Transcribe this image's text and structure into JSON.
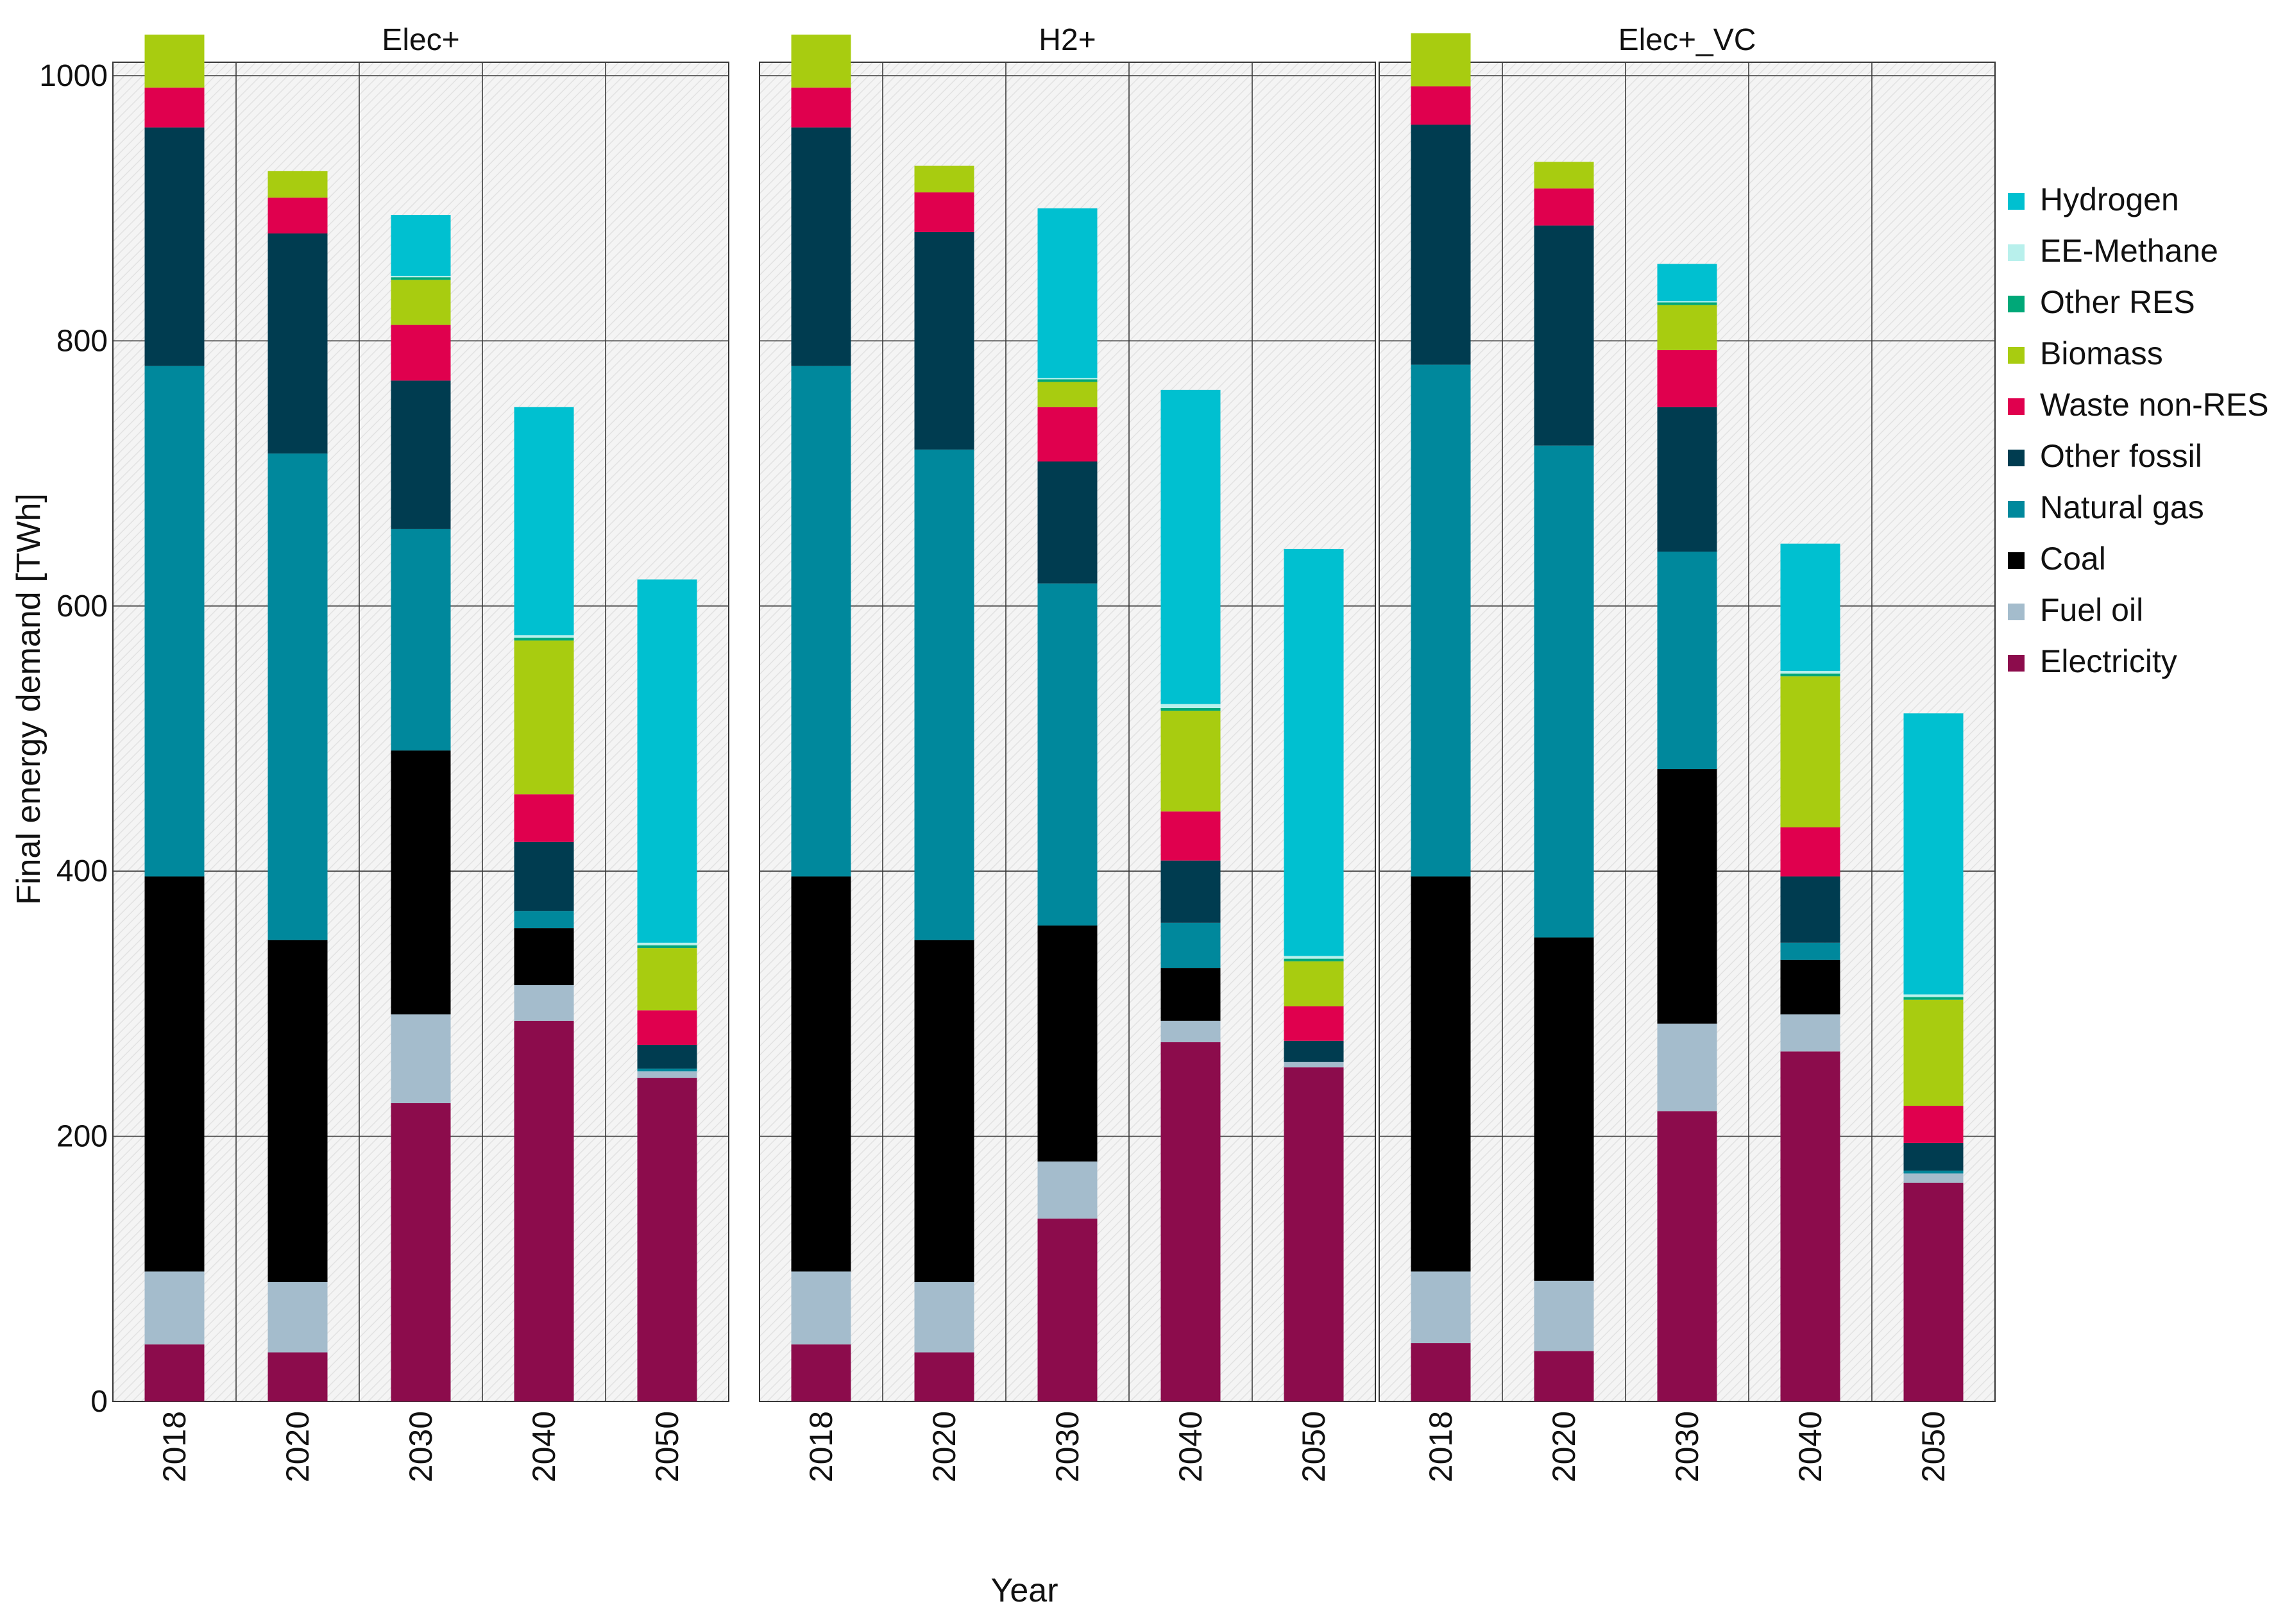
{
  "chart_data": {
    "type": "bar",
    "stacked": true,
    "xlabel": "Year",
    "ylabel": "Final energy demand [TWh]",
    "ylim": [
      0,
      1000
    ],
    "yticks": [
      0,
      200,
      400,
      600,
      800,
      1000
    ],
    "grid": true,
    "legend_position": "right",
    "categories": [
      "2018",
      "2020",
      "2030",
      "2040",
      "2050"
    ],
    "series_order": [
      "Electricity",
      "Fuel oil",
      "Coal",
      "Natural gas",
      "Other fossil",
      "Waste non-RES",
      "Biomass",
      "Other RES",
      "EE-Methane",
      "Hydrogen"
    ],
    "legend": [
      "Hydrogen",
      "EE-Methane",
      "Other RES",
      "Biomass",
      "Waste non-RES",
      "Other fossil",
      "Natural gas",
      "Coal",
      "Fuel oil",
      "Electricity"
    ],
    "colors": {
      "Hydrogen": "#00c0d0",
      "EE-Methane": "#b8f0ec",
      "Other RES": "#00a878",
      "Biomass": "#a8cc10",
      "Waste non-RES": "#e0004e",
      "Other fossil": "#003c50",
      "Natural gas": "#00889c",
      "Coal": "#000000",
      "Fuel oil": "#a4bccc",
      "Electricity": "#8c0c4c"
    },
    "panels": [
      {
        "title": "Elec+",
        "series": [
          {
            "name": "Electricity",
            "values": [
              43,
              37,
              225,
              287,
              244
            ]
          },
          {
            "name": "Fuel oil",
            "values": [
              55,
              53,
              67,
              27,
              5
            ]
          },
          {
            "name": "Coal",
            "values": [
              298,
              258,
              199,
              43,
              0
            ]
          },
          {
            "name": "Natural gas",
            "values": [
              385,
              367,
              167,
              13,
              2
            ]
          },
          {
            "name": "Other fossil",
            "values": [
              180,
              166,
              112,
              52,
              18
            ]
          },
          {
            "name": "Waste non-RES",
            "values": [
              30,
              27,
              42,
              36,
              26
            ]
          },
          {
            "name": "Biomass",
            "values": [
              40,
              20,
              34,
              116,
              47
            ]
          },
          {
            "name": "Other RES",
            "values": [
              0,
              0,
              2,
              2,
              2
            ]
          },
          {
            "name": "EE-Methane",
            "values": [
              0,
              0,
              1,
              2,
              2
            ]
          },
          {
            "name": "Hydrogen",
            "values": [
              0,
              0,
              46,
              172,
              274
            ]
          }
        ]
      },
      {
        "title": "H2+",
        "series": [
          {
            "name": "Electricity",
            "values": [
              43,
              37,
              138,
              271,
              252
            ]
          },
          {
            "name": "Fuel oil",
            "values": [
              55,
              53,
              43,
              16,
              4
            ]
          },
          {
            "name": "Coal",
            "values": [
              298,
              258,
              178,
              40,
              0
            ]
          },
          {
            "name": "Natural gas",
            "values": [
              385,
              370,
              258,
              34,
              0
            ]
          },
          {
            "name": "Other fossil",
            "values": [
              180,
              164,
              92,
              47,
              16
            ]
          },
          {
            "name": "Waste non-RES",
            "values": [
              30,
              30,
              41,
              37,
              26
            ]
          },
          {
            "name": "Biomass",
            "values": [
              40,
              20,
              19,
              76,
              34
            ]
          },
          {
            "name": "Other RES",
            "values": [
              0,
              0,
              2,
              2,
              2
            ]
          },
          {
            "name": "EE-Methane",
            "values": [
              0,
              0,
              1,
              3,
              2
            ]
          },
          {
            "name": "Hydrogen",
            "values": [
              0,
              0,
              128,
              237,
              307
            ]
          }
        ]
      },
      {
        "title": "Elec+_VC",
        "series": [
          {
            "name": "Electricity",
            "values": [
              44,
              38,
              219,
              264,
              165
            ]
          },
          {
            "name": "Fuel oil",
            "values": [
              54,
              53,
              66,
              28,
              7
            ]
          },
          {
            "name": "Coal",
            "values": [
              298,
              259,
              192,
              41,
              0
            ]
          },
          {
            "name": "Natural gas",
            "values": [
              386,
              371,
              164,
              13,
              2
            ]
          },
          {
            "name": "Other fossil",
            "values": [
              181,
              166,
              109,
              50,
              21
            ]
          },
          {
            "name": "Waste non-RES",
            "values": [
              29,
              28,
              43,
              37,
              28
            ]
          },
          {
            "name": "Biomass",
            "values": [
              40,
              20,
              34,
              114,
              80
            ]
          },
          {
            "name": "Other RES",
            "values": [
              0,
              0,
              2,
              2,
              2
            ]
          },
          {
            "name": "EE-Methane",
            "values": [
              0,
              0,
              1,
              2,
              2
            ]
          },
          {
            "name": "Hydrogen",
            "values": [
              0,
              0,
              28,
              96,
              212
            ]
          }
        ]
      }
    ]
  }
}
